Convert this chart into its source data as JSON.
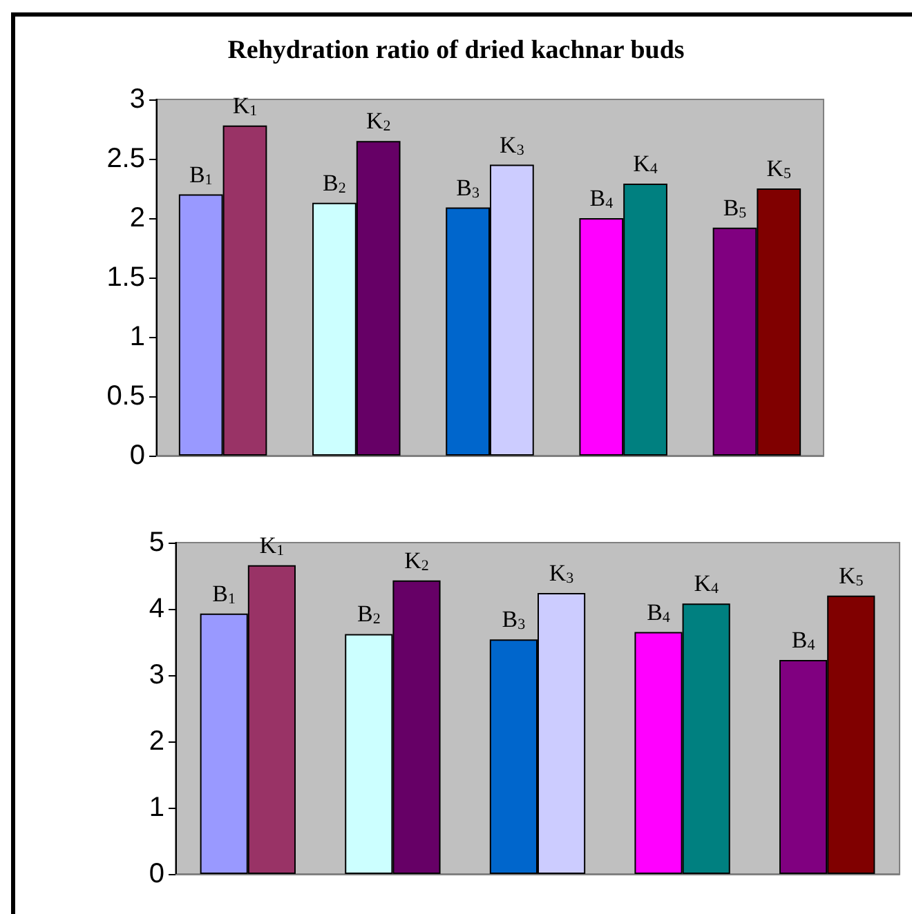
{
  "chart_data": [
    {
      "type": "bar",
      "title": "Rehydration ratio of dried kachnar buds",
      "categories": [
        null,
        null,
        null,
        null,
        null
      ],
      "ylim": [
        0,
        3
      ],
      "yticks": [
        0,
        0.5,
        1,
        1.5,
        2,
        2.5,
        3
      ],
      "annotations": [
        "B$_{1}$",
        "K$_{1}$",
        "B$_{2}$",
        "K$_{2}$",
        "B$_{3}$",
        "K$_{3}$",
        "B$_{4}$",
        "K$_{4}$",
        "B$_{5}$",
        "K$_{5}$"
      ],
      "series": [
        {
          "colors": [
            "#9999ff",
            "#ccffff",
            "#0066cc",
            "#ff00ff",
            "#800080"
          ],
          "values": [
            2.2,
            2.13,
            2.09,
            2.0,
            1.92
          ]
        },
        {
          "colors": [
            "#993366",
            "#660066",
            "#ccccff",
            "#008080",
            "#800000"
          ],
          "values": [
            2.78,
            2.65,
            2.45,
            2.29,
            2.25
          ]
        }
      ]
    },
    {
      "type": "bar",
      "categories": [
        null,
        null,
        null,
        null,
        null
      ],
      "ylim": [
        0,
        5
      ],
      "yticks": [
        0,
        1,
        2,
        3,
        4,
        5
      ],
      "annotations": [
        "B$_{1}$",
        "K$_{1}$",
        "B$_{2}$",
        "K$_{2}$",
        "B$_{3}$",
        "K$_{3}$",
        "B$_{4}$",
        "K$_{4}$",
        "B$_{4}$",
        "K$_{5}$"
      ],
      "series": [
        {
          "colors": [
            "#9999ff",
            "#ccffff",
            "#0066cc",
            "#ff00ff",
            "#800080"
          ],
          "values": [
            3.93,
            3.62,
            3.54,
            3.65,
            3.23
          ]
        },
        {
          "colors": [
            "#993366",
            "#660066",
            "#ccccff",
            "#008080",
            "#800000"
          ],
          "values": [
            4.66,
            4.43,
            4.24,
            4.08,
            4.2
          ]
        }
      ]
    }
  ]
}
